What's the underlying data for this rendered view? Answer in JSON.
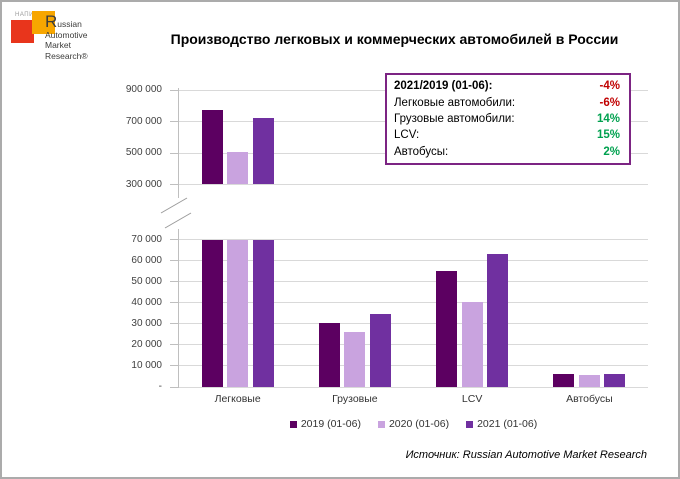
{
  "logo": {
    "napi": "НАПИ",
    "brand_initial": "R",
    "brand_line1_rest": "ussian",
    "brand_lines": [
      "Automotive",
      "Market",
      "Research®"
    ]
  },
  "title": "Производство легковых и коммерческих автомобилей в России",
  "stats_box": {
    "rows": [
      {
        "label": "2021/2019 (01-06):",
        "value": "-4%",
        "trend": "down",
        "bold": true
      },
      {
        "label": "Легковые автомобили:",
        "value": "-6%",
        "trend": "down",
        "bold": false
      },
      {
        "label": "Грузовые автомобили:",
        "value": "14%",
        "trend": "up",
        "bold": false
      },
      {
        "label": "LCV:",
        "value": "15%",
        "trend": "up",
        "bold": false
      },
      {
        "label": "Автобусы:",
        "value": "2%",
        "trend": "up",
        "bold": false
      }
    ]
  },
  "chart_data": {
    "type": "bar",
    "broken_axis": true,
    "title": "Производство легковых и коммерческих автомобилей в России",
    "categories": [
      "Легковые",
      "Грузовые",
      "LCV",
      "Автобусы"
    ],
    "series": [
      {
        "name": "2019 (01-06)",
        "color": "#5C0061",
        "values": [
          770000,
          30500,
          55000,
          6000
        ]
      },
      {
        "name": "2020 (01-06)",
        "color": "#C9A3DF",
        "values": [
          505000,
          26000,
          40500,
          5700
        ]
      },
      {
        "name": "2021 (01-06)",
        "color": "#7030A0",
        "values": [
          724000,
          34800,
          63200,
          6100
        ]
      }
    ],
    "top_panel": {
      "min": 300000,
      "max": 900000,
      "tick_labels": [
        "900 000",
        "700 000",
        "500 000",
        "300 000"
      ]
    },
    "bottom_panel": {
      "min": 0,
      "max": 70000,
      "tick_labels": [
        "70 000",
        "60 000",
        "50 000",
        "40 000",
        "30 000",
        "20 000",
        "10 000",
        "-"
      ]
    },
    "grid": true,
    "legend_position": "bottom"
  },
  "source": "Источник: Russian Automotive Market Research",
  "colors": {
    "bar_2019": "#5C0061",
    "bar_2020": "#C9A3DF",
    "bar_2021": "#7030A0",
    "negative": "#C00000",
    "positive": "#00A14F",
    "box_border": "#7C2483",
    "gridline": "#D9D9D9",
    "logo_red": "#E8351C",
    "logo_orange": "#F7A600"
  }
}
